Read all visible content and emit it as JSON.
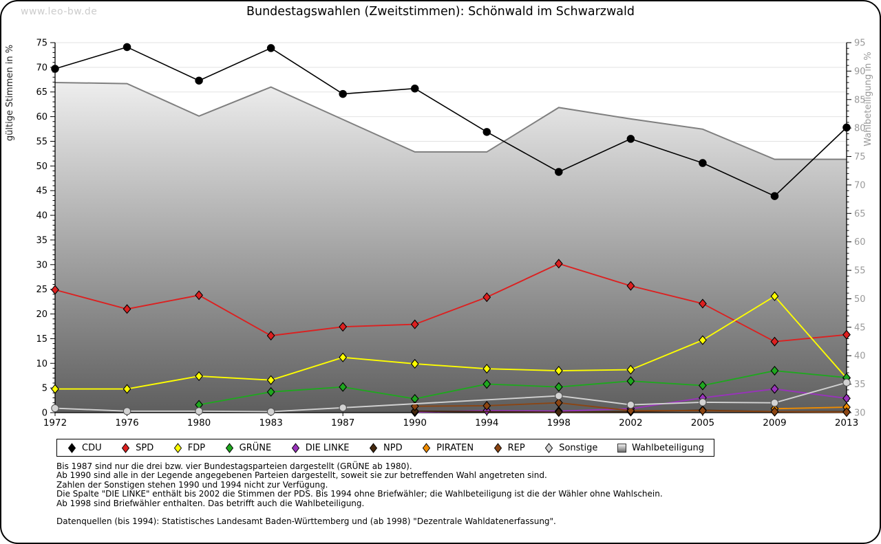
{
  "watermark": "www.leo-bw.de",
  "chart_data": {
    "type": "line",
    "title": "Bundestagswahlen (Zweitstimmen): Schönwald im Schwarzwald",
    "x_categories": [
      "1972",
      "1976",
      "1980",
      "1983",
      "1987",
      "1990",
      "1994",
      "1998",
      "2002",
      "2005",
      "2009",
      "2013"
    ],
    "y_left_axis": {
      "label": "gültige Stimmen in %",
      "min": 0,
      "max": 75,
      "tick_step": 5,
      "minor_step": 1
    },
    "y_right_axis": {
      "label": "Wahlbeteiligung in %",
      "min": 30,
      "max": 95,
      "tick_step": 5,
      "minor_step": 1
    },
    "grid": true,
    "legend_position": "bottom",
    "series": [
      {
        "name": "CDU",
        "color": "#000000",
        "axis": "left",
        "role": "line",
        "marker": "circle",
        "values": [
          69.7,
          74.1,
          67.3,
          73.9,
          64.6,
          65.7,
          56.9,
          48.8,
          55.5,
          50.6,
          43.9,
          57.8
        ]
      },
      {
        "name": "SPD",
        "color": "#dc2020",
        "axis": "left",
        "role": "line",
        "marker": "diamond",
        "values": [
          24.9,
          21.0,
          23.8,
          15.6,
          17.4,
          17.9,
          23.4,
          30.2,
          25.7,
          22.1,
          14.4,
          15.8
        ]
      },
      {
        "name": "FDP",
        "color": "#ffff00",
        "axis": "left",
        "role": "line",
        "marker": "diamond",
        "values": [
          4.8,
          4.8,
          7.4,
          6.6,
          11.2,
          9.9,
          8.9,
          8.5,
          8.7,
          14.7,
          23.6,
          7.0
        ]
      },
      {
        "name": "GRÜNE",
        "color": "#1fa71f",
        "axis": "left",
        "role": "line",
        "marker": "diamond",
        "values": [
          null,
          null,
          1.6,
          4.2,
          5.2,
          2.8,
          5.8,
          5.2,
          6.4,
          5.5,
          8.5,
          7.1
        ]
      },
      {
        "name": "DIE LINKE",
        "color": "#9933bb",
        "axis": "left",
        "role": "line",
        "marker": "diamond",
        "values": [
          null,
          null,
          null,
          null,
          null,
          0.1,
          0.4,
          0.3,
          0.8,
          3.0,
          4.8,
          2.9
        ]
      },
      {
        "name": "NPD",
        "color": "#44280e",
        "axis": "left",
        "role": "line",
        "marker": "diamond",
        "values": [
          null,
          null,
          null,
          null,
          null,
          0.3,
          null,
          0.1,
          0.2,
          0.5,
          0.2,
          0.2
        ]
      },
      {
        "name": "PIRATEN",
        "color": "#ef8c00",
        "axis": "left",
        "role": "line",
        "marker": "diamond",
        "values": [
          null,
          null,
          null,
          null,
          null,
          null,
          null,
          null,
          null,
          null,
          0.8,
          1.1
        ]
      },
      {
        "name": "REP",
        "color": "#8b4513",
        "axis": "left",
        "role": "line",
        "marker": "diamond",
        "values": [
          null,
          null,
          null,
          null,
          null,
          1.3,
          1.4,
          2.0,
          0.4,
          0.4,
          0.2,
          0.1
        ]
      },
      {
        "name": "Sonstige",
        "color": "#d3d3d3",
        "axis": "left",
        "role": "line",
        "marker": "circle",
        "values": [
          0.9,
          0.3,
          0.3,
          0.2,
          1.0,
          null,
          null,
          3.4,
          1.6,
          2.1,
          2.0,
          6.1
        ]
      },
      {
        "name": "Wahlbeteiligung",
        "color": "#7f7f7f",
        "axis": "right",
        "role": "area",
        "marker": "none",
        "values": [
          88.0,
          87.8,
          82.1,
          87.2,
          81.5,
          75.8,
          75.8,
          83.6,
          81.6,
          79.8,
          74.5,
          74.5
        ]
      }
    ],
    "footnotes": [
      "Bis 1987 sind nur die drei bzw. vier Bundestagsparteien dargestellt (GRÜNE ab 1980).",
      "Ab 1990 sind alle in der Legende angegebenen Parteien dargestellt, soweit sie zur betreffenden Wahl angetreten sind.",
      "Zahlen der Sonstigen stehen 1990 und 1994 nicht zur Verfügung.",
      "Die Spalte \"DIE LINKE\" enthält bis 2002 die Stimmen der PDS. Bis 1994 ohne Briefwähler; die Wahlbeteiligung ist die der Wähler ohne Wahlschein.",
      "Ab 1998 sind Briefwähler enthalten. Das betrifft auch die Wahlbeteiligung.",
      "",
      "Datenquellen (bis 1994): Statistisches Landesamt Baden-Württemberg und (ab 1998) \"Dezentrale Wahldatenerfassung\"."
    ],
    "styles": {
      "gridline_color": "#e2e2e2",
      "axis_color": "#000000",
      "right_axis_text_color": "#999999",
      "area_gradient_top": "#ffffff",
      "area_gradient_bottom": "#5e5e5e",
      "background": "#ffffff"
    }
  }
}
